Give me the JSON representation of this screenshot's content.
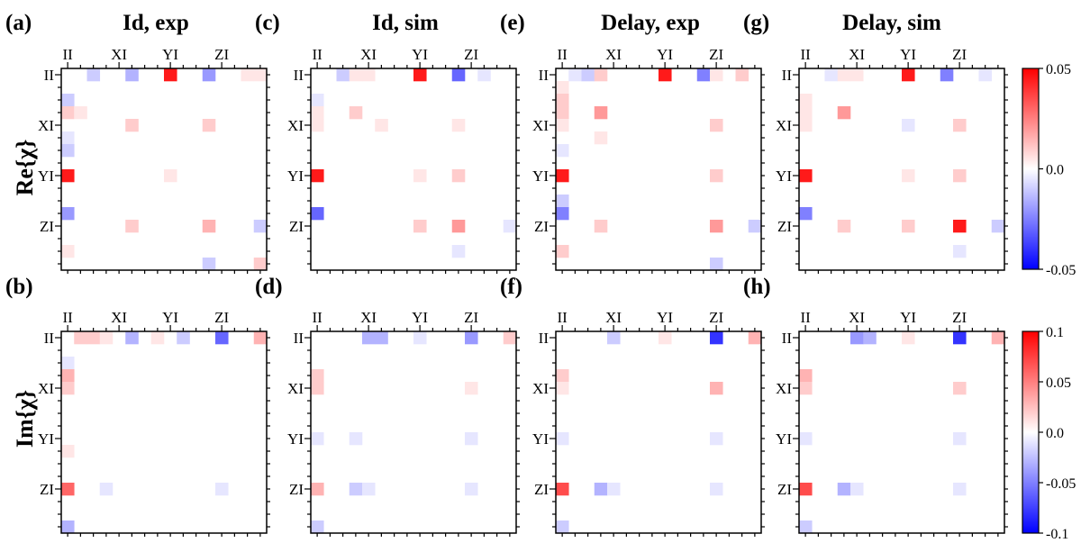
{
  "figure": {
    "row_labels": [
      "Re{χ}",
      "Im{χ}"
    ],
    "column_titles": [
      "Id, exp",
      "Id, sim",
      "Delay, exp",
      "Delay, sim"
    ],
    "colorbars": [
      {
        "row": 0,
        "min": -0.05,
        "max": 0.05,
        "ticks": [
          "0.05",
          "0.0",
          "-0.05"
        ],
        "tick_values": [
          0.05,
          0.0,
          -0.05
        ]
      },
      {
        "row": 1,
        "min": -0.1,
        "max": 0.1,
        "ticks": [
          "0.1",
          "0.05",
          "0.0",
          "-0.05",
          "-0.1"
        ],
        "tick_values": [
          0.1,
          0.05,
          0.0,
          -0.05,
          -0.1
        ]
      }
    ],
    "colors": {
      "negative": "#0000ff",
      "zero": "#ffffff",
      "positive": "#ff0000"
    }
  },
  "chart_data": [
    {
      "type": "heatmap",
      "panel": "(a)",
      "title": "Id, exp",
      "component": "Re{χ}",
      "size": 16,
      "tick_labels": [
        "II",
        "XI",
        "YI",
        "ZI"
      ],
      "tick_indices": [
        0,
        4,
        8,
        12
      ],
      "range": [
        -0.05,
        0.05
      ],
      "cells": [
        [
          0,
          2,
          -0.01
        ],
        [
          0,
          5,
          -0.015
        ],
        [
          0,
          8,
          0.045
        ],
        [
          0,
          11,
          -0.02
        ],
        [
          0,
          14,
          0.005
        ],
        [
          0,
          15,
          0.005
        ],
        [
          2,
          0,
          -0.01
        ],
        [
          3,
          0,
          0.01
        ],
        [
          3,
          1,
          0.005
        ],
        [
          4,
          5,
          0.01
        ],
        [
          4,
          11,
          0.01
        ],
        [
          5,
          0,
          -0.005
        ],
        [
          6,
          0,
          -0.01
        ],
        [
          8,
          0,
          0.045
        ],
        [
          8,
          8,
          0.005
        ],
        [
          11,
          0,
          -0.02
        ],
        [
          12,
          5,
          0.01
        ],
        [
          12,
          11,
          0.015
        ],
        [
          12,
          15,
          -0.01
        ],
        [
          14,
          0,
          0.005
        ],
        [
          15,
          11,
          -0.01
        ],
        [
          15,
          15,
          0.01
        ]
      ]
    },
    {
      "type": "heatmap",
      "panel": "(c)",
      "title": "Id, sim",
      "component": "Re{χ}",
      "size": 16,
      "tick_labels": [
        "II",
        "XI",
        "YI",
        "ZI"
      ],
      "tick_indices": [
        0,
        4,
        8,
        12
      ],
      "range": [
        -0.05,
        0.05
      ],
      "cells": [
        [
          0,
          2,
          -0.01
        ],
        [
          0,
          3,
          0.005
        ],
        [
          0,
          4,
          0.005
        ],
        [
          0,
          8,
          0.045
        ],
        [
          0,
          11,
          -0.03
        ],
        [
          0,
          13,
          -0.005
        ],
        [
          2,
          0,
          -0.005
        ],
        [
          3,
          0,
          0.005
        ],
        [
          3,
          3,
          0.01
        ],
        [
          4,
          0,
          0.005
        ],
        [
          4,
          5,
          0.005
        ],
        [
          4,
          11,
          0.005
        ],
        [
          8,
          0,
          0.045
        ],
        [
          8,
          8,
          0.005
        ],
        [
          8,
          11,
          0.01
        ],
        [
          11,
          0,
          -0.03
        ],
        [
          12,
          8,
          0.01
        ],
        [
          12,
          11,
          0.02
        ],
        [
          12,
          15,
          -0.005
        ],
        [
          14,
          11,
          -0.005
        ]
      ]
    },
    {
      "type": "heatmap",
      "panel": "(e)",
      "title": "Delay, exp",
      "component": "Re{χ}",
      "size": 16,
      "tick_labels": [
        "II",
        "XI",
        "YI",
        "ZI"
      ],
      "tick_indices": [
        0,
        4,
        8,
        12
      ],
      "range": [
        -0.05,
        0.05
      ],
      "cells": [
        [
          0,
          1,
          -0.005
        ],
        [
          0,
          2,
          -0.01
        ],
        [
          0,
          3,
          0.01
        ],
        [
          0,
          8,
          0.045
        ],
        [
          0,
          11,
          -0.025
        ],
        [
          0,
          12,
          0.005
        ],
        [
          0,
          14,
          0.01
        ],
        [
          1,
          0,
          0.005
        ],
        [
          2,
          0,
          0.01
        ],
        [
          3,
          0,
          0.01
        ],
        [
          3,
          3,
          0.02
        ],
        [
          4,
          0,
          0.005
        ],
        [
          4,
          12,
          0.01
        ],
        [
          5,
          3,
          0.005
        ],
        [
          6,
          0,
          -0.005
        ],
        [
          8,
          0,
          0.045
        ],
        [
          8,
          12,
          0.01
        ],
        [
          10,
          0,
          -0.01
        ],
        [
          11,
          0,
          -0.025
        ],
        [
          12,
          3,
          0.01
        ],
        [
          12,
          12,
          0.02
        ],
        [
          12,
          15,
          -0.01
        ],
        [
          14,
          0,
          0.01
        ],
        [
          15,
          12,
          -0.01
        ]
      ]
    },
    {
      "type": "heatmap",
      "panel": "(g)",
      "title": "Delay, sim",
      "component": "Re{χ}",
      "size": 16,
      "tick_labels": [
        "II",
        "XI",
        "YI",
        "ZI"
      ],
      "tick_indices": [
        0,
        4,
        8,
        12
      ],
      "range": [
        -0.05,
        0.05
      ],
      "cells": [
        [
          0,
          2,
          -0.005
        ],
        [
          0,
          3,
          0.005
        ],
        [
          0,
          4,
          0.005
        ],
        [
          0,
          8,
          0.045
        ],
        [
          0,
          11,
          -0.025
        ],
        [
          0,
          14,
          -0.005
        ],
        [
          2,
          0,
          0.005
        ],
        [
          3,
          0,
          0.005
        ],
        [
          3,
          3,
          0.02
        ],
        [
          4,
          0,
          0.005
        ],
        [
          4,
          8,
          -0.005
        ],
        [
          4,
          12,
          0.01
        ],
        [
          8,
          0,
          0.045
        ],
        [
          8,
          8,
          0.005
        ],
        [
          8,
          12,
          0.01
        ],
        [
          11,
          0,
          -0.025
        ],
        [
          12,
          3,
          0.01
        ],
        [
          12,
          8,
          0.01
        ],
        [
          12,
          12,
          0.045
        ],
        [
          12,
          15,
          -0.01
        ],
        [
          14,
          12,
          -0.005
        ]
      ]
    },
    {
      "type": "heatmap",
      "panel": "(b)",
      "title": "Id, exp",
      "component": "Im{χ}",
      "size": 16,
      "tick_labels": [
        "II",
        "XI",
        "YI",
        "ZI"
      ],
      "tick_indices": [
        0,
        4,
        8,
        12
      ],
      "range": [
        -0.1,
        0.1
      ],
      "cells": [
        [
          0,
          1,
          0.02
        ],
        [
          0,
          2,
          0.02
        ],
        [
          0,
          3,
          0.01
        ],
        [
          0,
          5,
          -0.03
        ],
        [
          0,
          7,
          0.01
        ],
        [
          0,
          9,
          -0.02
        ],
        [
          0,
          12,
          -0.06
        ],
        [
          0,
          15,
          0.03
        ],
        [
          2,
          0,
          -0.01
        ],
        [
          3,
          0,
          0.03
        ],
        [
          4,
          0,
          0.02
        ],
        [
          9,
          0,
          0.01
        ],
        [
          12,
          0,
          0.06
        ],
        [
          12,
          3,
          -0.01
        ],
        [
          12,
          12,
          -0.01
        ],
        [
          15,
          0,
          -0.03
        ]
      ]
    },
    {
      "type": "heatmap",
      "panel": "(d)",
      "title": "Id, sim",
      "component": "Im{χ}",
      "size": 16,
      "tick_labels": [
        "II",
        "XI",
        "YI",
        "ZI"
      ],
      "tick_indices": [
        0,
        4,
        8,
        12
      ],
      "range": [
        -0.1,
        0.1
      ],
      "cells": [
        [
          0,
          4,
          -0.03
        ],
        [
          0,
          5,
          -0.03
        ],
        [
          0,
          8,
          -0.01
        ],
        [
          0,
          12,
          -0.04
        ],
        [
          0,
          15,
          0.02
        ],
        [
          3,
          0,
          0.02
        ],
        [
          4,
          0,
          0.02
        ],
        [
          4,
          12,
          0.01
        ],
        [
          8,
          0,
          -0.01
        ],
        [
          8,
          3,
          -0.01
        ],
        [
          8,
          12,
          -0.01
        ],
        [
          12,
          0,
          0.03
        ],
        [
          12,
          3,
          -0.02
        ],
        [
          12,
          4,
          -0.01
        ],
        [
          12,
          12,
          -0.01
        ],
        [
          15,
          0,
          -0.02
        ]
      ]
    },
    {
      "type": "heatmap",
      "panel": "(f)",
      "title": "Delay, exp",
      "component": "Im{χ}",
      "size": 16,
      "tick_labels": [
        "II",
        "XI",
        "YI",
        "ZI"
      ],
      "tick_indices": [
        0,
        4,
        8,
        12
      ],
      "range": [
        -0.1,
        0.1
      ],
      "cells": [
        [
          0,
          4,
          -0.02
        ],
        [
          0,
          8,
          0.01
        ],
        [
          0,
          12,
          -0.08
        ],
        [
          0,
          15,
          0.03
        ],
        [
          3,
          0,
          0.02
        ],
        [
          4,
          0,
          0.01
        ],
        [
          4,
          12,
          0.03
        ],
        [
          8,
          0,
          -0.01
        ],
        [
          8,
          12,
          -0.01
        ],
        [
          12,
          0,
          0.07
        ],
        [
          12,
          3,
          -0.03
        ],
        [
          12,
          4,
          -0.01
        ],
        [
          12,
          12,
          -0.01
        ],
        [
          15,
          0,
          -0.02
        ]
      ]
    },
    {
      "type": "heatmap",
      "panel": "(h)",
      "title": "Delay, sim",
      "component": "Im{χ}",
      "size": 16,
      "tick_labels": [
        "II",
        "XI",
        "YI",
        "ZI"
      ],
      "tick_indices": [
        0,
        4,
        8,
        12
      ],
      "range": [
        -0.1,
        0.1
      ],
      "cells": [
        [
          0,
          4,
          -0.04
        ],
        [
          0,
          5,
          -0.03
        ],
        [
          0,
          8,
          0.01
        ],
        [
          0,
          12,
          -0.08
        ],
        [
          0,
          15,
          0.03
        ],
        [
          3,
          0,
          0.03
        ],
        [
          4,
          0,
          0.02
        ],
        [
          4,
          12,
          0.02
        ],
        [
          8,
          0,
          -0.01
        ],
        [
          8,
          12,
          -0.01
        ],
        [
          12,
          0,
          0.07
        ],
        [
          12,
          3,
          -0.03
        ],
        [
          12,
          4,
          -0.01
        ],
        [
          12,
          12,
          -0.01
        ],
        [
          15,
          0,
          -0.02
        ]
      ]
    }
  ]
}
